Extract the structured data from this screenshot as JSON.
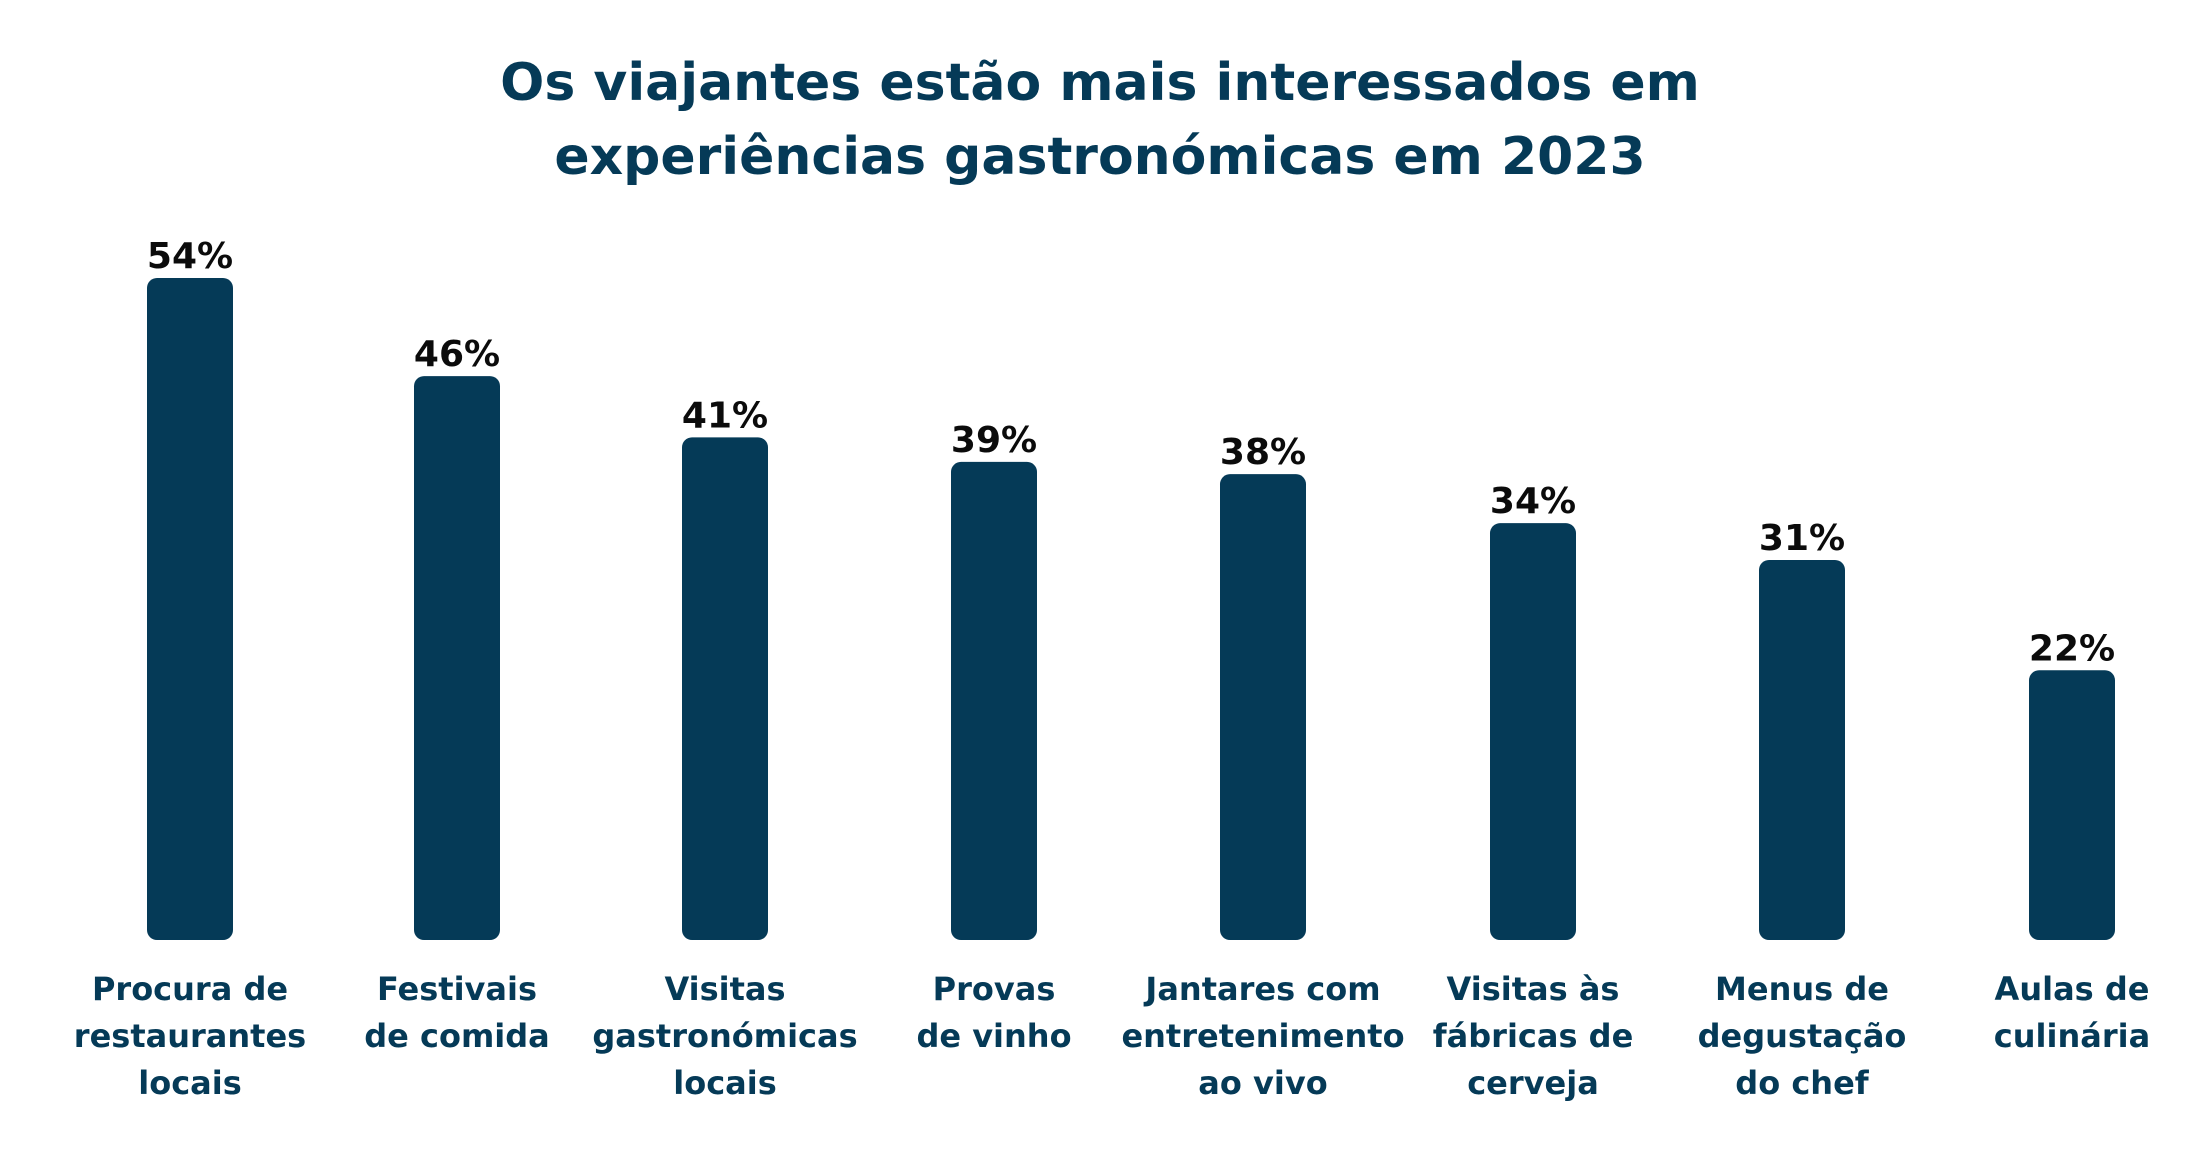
{
  "chart_data": {
    "type": "bar",
    "title": "Os viajantes estão mais interessados em experiências gastronómicas em 2023",
    "title_lines": [
      "Os viajantes estão mais interessados em",
      "experiências gastronómicas em 2023"
    ],
    "categories": [
      "Procura de restaurantes locais",
      "Festivais de comida",
      "Visitas gastronómicas locais",
      "Provas de vinho",
      "Jantares com entretenimento ao vivo",
      "Visitas às fábricas de cerveja",
      "Menus de degustação do chef",
      "Aulas de culinária"
    ],
    "category_lines": [
      [
        "Procura de",
        "restaurantes",
        "locais"
      ],
      [
        "Festivais",
        "de comida"
      ],
      [
        "Visitas",
        "gastronómicas",
        "locais"
      ],
      [
        "Provas",
        "de vinho"
      ],
      [
        "Jantares com",
        "entretenimento",
        "ao vivo"
      ],
      [
        "Visitas às",
        "fábricas de",
        "cerveja"
      ],
      [
        "Menus de",
        "degustação",
        "do chef"
      ],
      [
        "Aulas de",
        "culinária"
      ]
    ],
    "values": [
      54,
      46,
      41,
      39,
      38,
      34,
      31,
      22
    ],
    "value_labels": [
      "54%",
      "46%",
      "41%",
      "39%",
      "38%",
      "34%",
      "31%",
      "22%"
    ],
    "unit": "%",
    "ylim": [
      0,
      54
    ],
    "grid": false,
    "legend": "none",
    "colors": {
      "bar": "#053a57",
      "title": "#053a57",
      "category_text": "#053a57",
      "value_text": "#0b0b0b"
    }
  }
}
